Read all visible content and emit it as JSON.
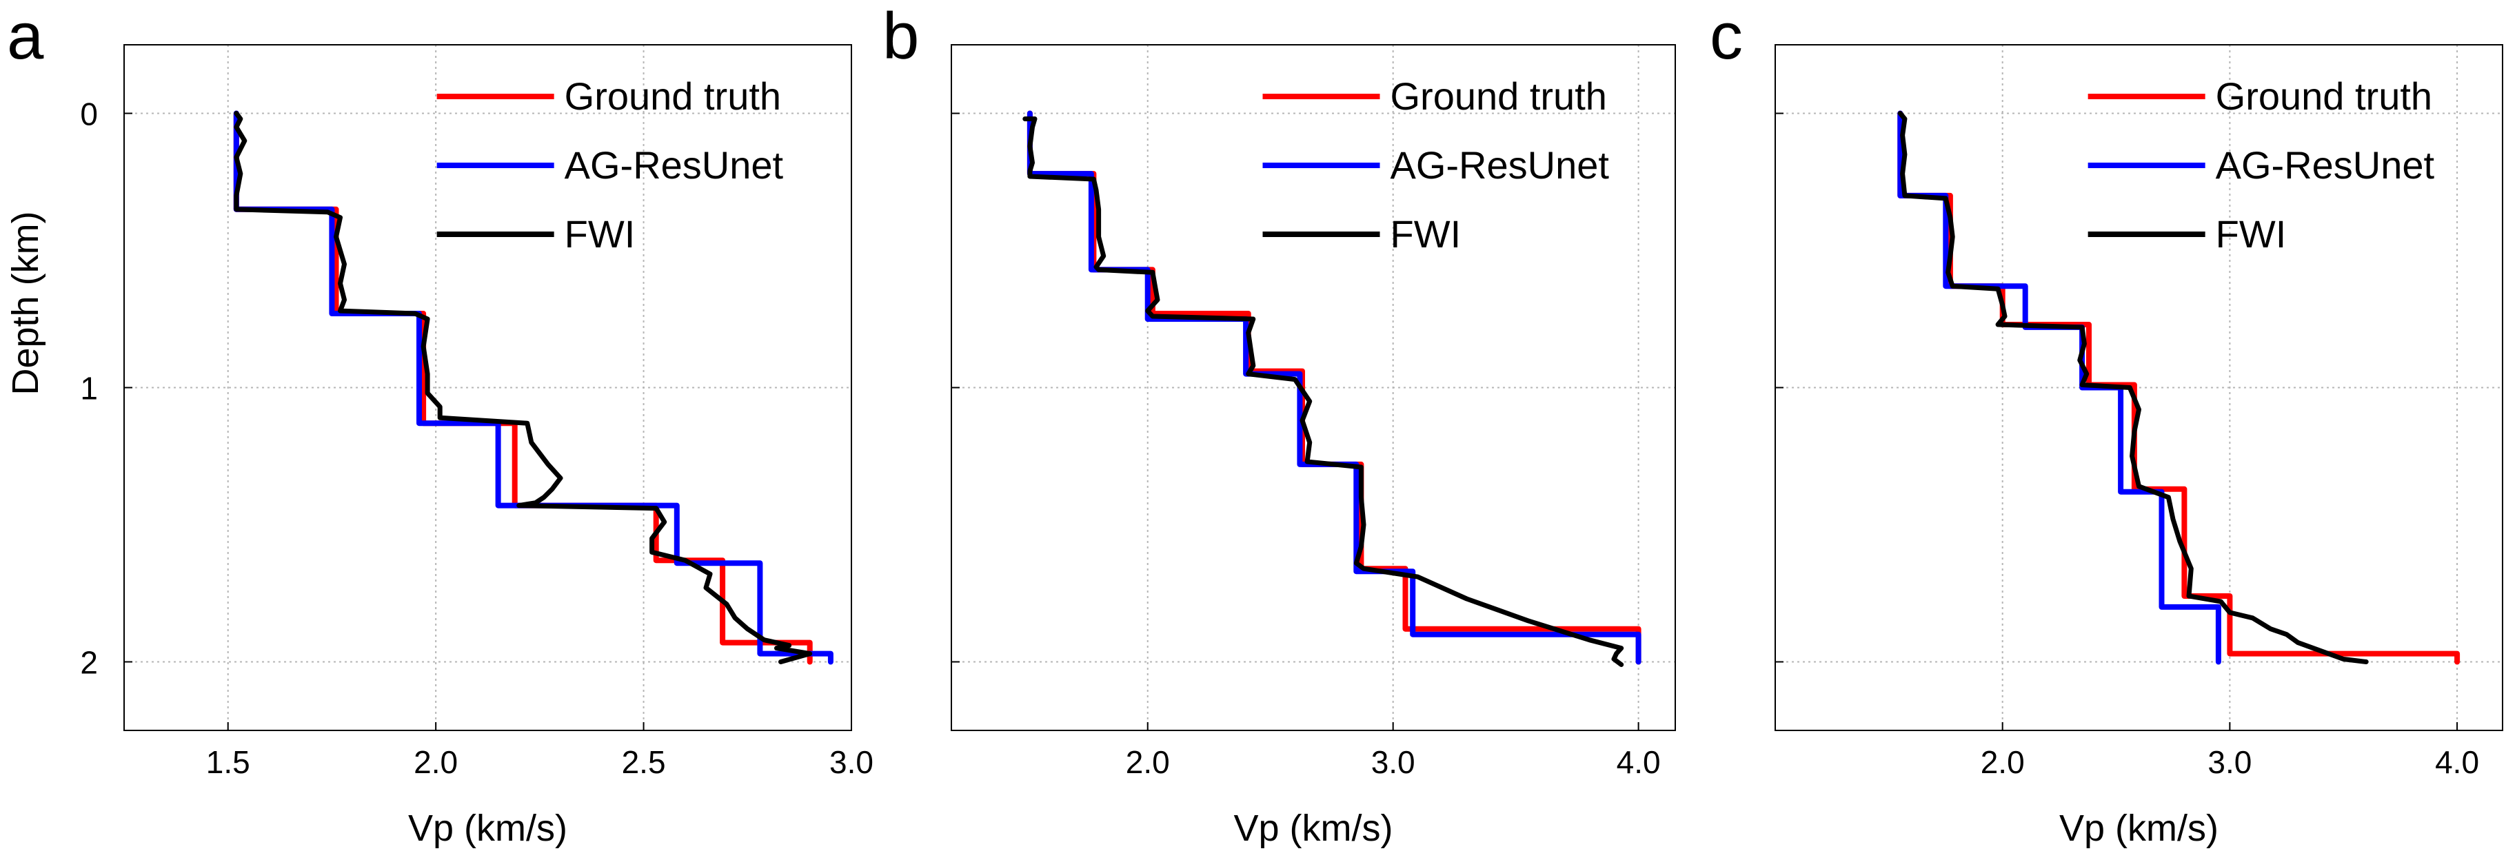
{
  "figure": {
    "ylabel": "Depth (km)"
  },
  "legend_labels": [
    "Ground truth",
    "AG-ResUnet",
    "FWI"
  ],
  "chart_data": [
    {
      "type": "line",
      "panel_label": "a",
      "xlabel": "Vp (km/s)",
      "ylabel": "Depth (km)",
      "xlim": [
        1.25,
        3.0
      ],
      "ylim": [
        2.25,
        -0.25
      ],
      "xticks": [
        1.5,
        2.0,
        2.5,
        3.0
      ],
      "xtick_labels": [
        "1.5",
        "2.0",
        "2.5",
        "3.0"
      ],
      "yticks": [
        0,
        1,
        2
      ],
      "ytick_labels": [
        "0",
        "1",
        "2"
      ],
      "grid": true,
      "legend_position": "top-right",
      "series": [
        {
          "name": "Ground truth",
          "color": "#ff0000",
          "x": [
            1.52,
            1.52,
            1.76,
            1.76,
            1.97,
            1.97,
            2.19,
            2.19,
            2.53,
            2.53,
            2.69,
            2.69,
            2.9,
            2.9
          ],
          "y": [
            0.0,
            0.35,
            0.35,
            0.73,
            0.73,
            1.13,
            1.13,
            1.43,
            1.43,
            1.63,
            1.63,
            1.93,
            1.93,
            2.0
          ]
        },
        {
          "name": "AG-ResUnet",
          "color": "#0000ff",
          "x": [
            1.52,
            1.52,
            1.75,
            1.75,
            1.96,
            1.96,
            2.15,
            2.15,
            2.58,
            2.58,
            2.78,
            2.78,
            2.95,
            2.95
          ],
          "y": [
            0.0,
            0.35,
            0.35,
            0.73,
            0.73,
            1.13,
            1.13,
            1.43,
            1.43,
            1.64,
            1.64,
            1.97,
            1.97,
            2.0
          ]
        },
        {
          "name": "FWI",
          "color": "#000000",
          "x": [
            1.52,
            1.53,
            1.52,
            1.54,
            1.52,
            1.53,
            1.52,
            1.52,
            1.74,
            1.77,
            1.76,
            1.78,
            1.77,
            1.78,
            1.77,
            1.95,
            1.98,
            1.97,
            1.98,
            1.98,
            2.01,
            2.01,
            2.22,
            2.23,
            2.27,
            2.3,
            2.28,
            2.26,
            2.24,
            2.2,
            2.53,
            2.55,
            2.52,
            2.52,
            2.6,
            2.66,
            2.65,
            2.7,
            2.72,
            2.75,
            2.79,
            2.85,
            2.82,
            2.9,
            2.83
          ],
          "y": [
            0.0,
            0.02,
            0.05,
            0.1,
            0.16,
            0.22,
            0.3,
            0.35,
            0.36,
            0.38,
            0.45,
            0.55,
            0.62,
            0.68,
            0.72,
            0.73,
            0.75,
            0.85,
            0.95,
            1.02,
            1.07,
            1.11,
            1.13,
            1.2,
            1.28,
            1.33,
            1.37,
            1.4,
            1.42,
            1.43,
            1.44,
            1.49,
            1.55,
            1.6,
            1.63,
            1.68,
            1.73,
            1.79,
            1.84,
            1.88,
            1.92,
            1.94,
            1.95,
            1.97,
            2.0
          ]
        }
      ]
    },
    {
      "type": "line",
      "panel_label": "b",
      "xlabel": "Vp (km/s)",
      "ylabel": "",
      "xlim": [
        1.2,
        4.15
      ],
      "ylim": [
        2.25,
        -0.25
      ],
      "xticks": [
        2.0,
        3.0,
        4.0
      ],
      "xtick_labels": [
        "2.0",
        "3.0",
        "4.0"
      ],
      "yticks": [
        0,
        1,
        2
      ],
      "grid": true,
      "legend_position": "top-right",
      "series": [
        {
          "name": "Ground truth",
          "color": "#ff0000",
          "x": [
            1.52,
            1.52,
            1.78,
            1.78,
            2.02,
            2.02,
            2.41,
            2.41,
            2.63,
            2.63,
            2.87,
            2.87,
            3.05,
            3.05,
            4.0,
            4.0
          ],
          "y": [
            0.0,
            0.22,
            0.22,
            0.57,
            0.57,
            0.73,
            0.73,
            0.94,
            0.94,
            1.28,
            1.28,
            1.66,
            1.66,
            1.88,
            1.88,
            2.0
          ]
        },
        {
          "name": "AG-ResUnet",
          "color": "#0000ff",
          "x": [
            1.52,
            1.52,
            1.77,
            1.77,
            2.0,
            2.0,
            2.4,
            2.4,
            2.62,
            2.62,
            2.85,
            2.85,
            3.08,
            3.08,
            4.0,
            4.0
          ],
          "y": [
            0.0,
            0.22,
            0.22,
            0.57,
            0.57,
            0.75,
            0.75,
            0.95,
            0.95,
            1.28,
            1.28,
            1.67,
            1.67,
            1.9,
            1.9,
            2.0
          ]
        },
        {
          "name": "FWI",
          "color": "#000000",
          "x": [
            1.5,
            1.54,
            1.53,
            1.52,
            1.53,
            1.52,
            1.52,
            1.78,
            1.79,
            1.8,
            1.8,
            1.82,
            1.79,
            1.8,
            2.02,
            2.03,
            2.04,
            2.0,
            2.02,
            2.43,
            2.41,
            2.42,
            2.43,
            2.41,
            2.6,
            2.66,
            2.63,
            2.66,
            2.65,
            2.87,
            2.87,
            2.88,
            2.87,
            2.85,
            2.88,
            3.1,
            3.3,
            3.55,
            3.8,
            3.93,
            3.91,
            3.9,
            3.93
          ],
          "y": [
            0.02,
            0.02,
            0.05,
            0.12,
            0.18,
            0.21,
            0.23,
            0.24,
            0.28,
            0.35,
            0.45,
            0.52,
            0.56,
            0.57,
            0.58,
            0.63,
            0.68,
            0.72,
            0.74,
            0.75,
            0.8,
            0.86,
            0.92,
            0.95,
            0.97,
            1.05,
            1.12,
            1.2,
            1.27,
            1.29,
            1.4,
            1.5,
            1.58,
            1.64,
            1.66,
            1.69,
            1.77,
            1.85,
            1.92,
            1.95,
            1.97,
            1.99,
            2.01
          ]
        }
      ]
    },
    {
      "type": "line",
      "panel_label": "c",
      "xlabel": "Vp (km/s)",
      "ylabel": "",
      "xlim": [
        1.0,
        4.2
      ],
      "ylim": [
        2.25,
        -0.25
      ],
      "xticks": [
        2.0,
        3.0,
        4.0
      ],
      "xtick_labels": [
        "2.0",
        "3.0",
        "4.0"
      ],
      "yticks": [
        0,
        1,
        2
      ],
      "grid": true,
      "legend_position": "top-right",
      "series": [
        {
          "name": "Ground truth",
          "color": "#ff0000",
          "x": [
            1.55,
            1.55,
            1.77,
            1.77,
            2.0,
            2.0,
            2.38,
            2.38,
            2.58,
            2.58,
            2.8,
            2.8,
            3.0,
            3.0,
            4.0,
            4.0
          ],
          "y": [
            0.0,
            0.3,
            0.3,
            0.63,
            0.63,
            0.77,
            0.77,
            0.99,
            0.99,
            1.37,
            1.37,
            1.76,
            1.76,
            1.97,
            1.97,
            2.0
          ]
        },
        {
          "name": "AG-ResUnet",
          "color": "#0000ff",
          "x": [
            1.55,
            1.55,
            1.75,
            1.75,
            2.1,
            2.1,
            2.35,
            2.35,
            2.52,
            2.52,
            2.7,
            2.7,
            2.95,
            2.95
          ],
          "y": [
            0.0,
            0.3,
            0.3,
            0.63,
            0.63,
            0.78,
            0.78,
            1.0,
            1.0,
            1.38,
            1.38,
            1.8,
            1.8,
            2.0
          ]
        },
        {
          "name": "FWI",
          "color": "#000000",
          "x": [
            1.55,
            1.57,
            1.56,
            1.57,
            1.56,
            1.57,
            1.75,
            1.77,
            1.78,
            1.77,
            1.76,
            1.78,
            1.98,
            2.0,
            2.01,
            1.98,
            2.35,
            2.36,
            2.34,
            2.37,
            2.35,
            2.56,
            2.6,
            2.58,
            2.57,
            2.6,
            2.73,
            2.75,
            2.78,
            2.83,
            2.82,
            2.96,
            3.0,
            3.1,
            3.18,
            3.25,
            3.3,
            3.4,
            3.5,
            3.6
          ],
          "y": [
            0.0,
            0.02,
            0.08,
            0.15,
            0.22,
            0.3,
            0.31,
            0.38,
            0.45,
            0.52,
            0.58,
            0.63,
            0.64,
            0.7,
            0.74,
            0.77,
            0.78,
            0.84,
            0.9,
            0.95,
            0.99,
            1.0,
            1.08,
            1.16,
            1.25,
            1.36,
            1.4,
            1.48,
            1.56,
            1.66,
            1.76,
            1.78,
            1.82,
            1.84,
            1.88,
            1.9,
            1.93,
            1.96,
            1.99,
            2.0
          ]
        }
      ]
    }
  ]
}
